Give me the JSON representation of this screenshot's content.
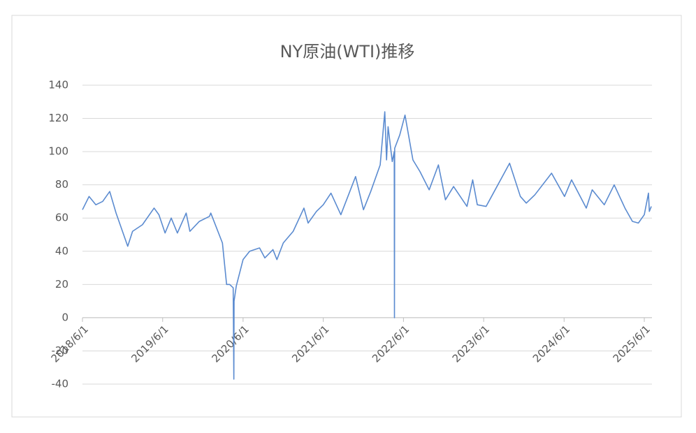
{
  "chart_data": {
    "type": "line",
    "title": "NY原油(WTI)推移",
    "x": [
      "2018/6/1",
      "2018/7/1",
      "2018/8/1",
      "2018/9/1",
      "2018/10/3",
      "2018/11/1",
      "2018/12/24",
      "2019/1/15",
      "2019/3/1",
      "2019/4/23",
      "2019/5/15",
      "2019/6/12",
      "2019/7/10",
      "2019/8/7",
      "2019/9/16",
      "2019/10/3",
      "2019/11/15",
      "2019/12/31",
      "2020/1/6",
      "2020/2/28",
      "2020/3/18",
      "2020/4/1",
      "2020/4/17",
      "2020/4/20",
      "2020/4/21",
      "2020/5/1",
      "2020/6/1",
      "2020/7/1",
      "2020/8/15",
      "2020/9/8",
      "2020/10/15",
      "2020/11/2",
      "2020/12/1",
      "2021/1/15",
      "2021/3/5",
      "2021/3/24",
      "2021/5/1",
      "2021/6/1",
      "2021/7/6",
      "2021/8/20",
      "2021/10/26",
      "2021/12/1",
      "2022/1/3",
      "2022/2/15",
      "2022/3/8",
      "2022/3/16",
      "2022/3/23",
      "2022/4/11",
      "2022/4/20",
      "2022/4/21",
      "2022/4/22",
      "2022/5/15",
      "2022/6/8",
      "2022/7/14",
      "2022/8/15",
      "2022/9/26",
      "2022/11/7",
      "2022/12/9",
      "2023/1/15",
      "2023/3/17",
      "2023/4/12",
      "2023/5/3",
      "2023/6/12",
      "2023/7/15",
      "2023/9/27",
      "2023/11/15",
      "2023/12/12",
      "2024/1/20",
      "2024/4/5",
      "2024/6/3",
      "2024/7/5",
      "2024/9/10",
      "2024/10/7",
      "2024/12/1",
      "2025/1/15",
      "2025/3/5",
      "2025/4/8",
      "2025/5/5",
      "2025/6/1",
      "2025/6/20",
      "2025/6/24",
      "2025/7/3"
    ],
    "series": [
      {
        "color": "#5b8bd0",
        "values": [
          65,
          73,
          68,
          70,
          76,
          63,
          43,
          52,
          56,
          66,
          62,
          51,
          60,
          51,
          63,
          52,
          58,
          61,
          63,
          45,
          20,
          20,
          18,
          -37,
          10,
          19,
          35,
          40,
          42,
          36,
          41,
          35,
          45,
          52,
          66,
          57,
          64,
          68,
          75,
          62,
          85,
          65,
          76,
          92,
          124,
          95,
          115,
          94,
          100,
          0,
          102,
          110,
          122,
          95,
          88,
          77,
          92,
          71,
          79,
          67,
          83,
          68,
          67,
          75,
          93,
          73,
          69,
          74,
          87,
          73,
          83,
          66,
          77,
          68,
          80,
          66,
          58,
          57,
          62,
          75,
          64,
          67
        ]
      }
    ],
    "xlim": [
      "2018/6/1",
      "2025/7/6"
    ],
    "xticks": [
      "2018/6/1",
      "2019/6/1",
      "2020/6/1",
      "2021/6/1",
      "2022/6/1",
      "2023/6/1",
      "2024/6/1",
      "2025/6/1"
    ],
    "ylim": [
      -40,
      140
    ],
    "yticks": [
      -40,
      -20,
      0,
      20,
      40,
      60,
      80,
      100,
      120,
      140
    ],
    "grid": true
  }
}
